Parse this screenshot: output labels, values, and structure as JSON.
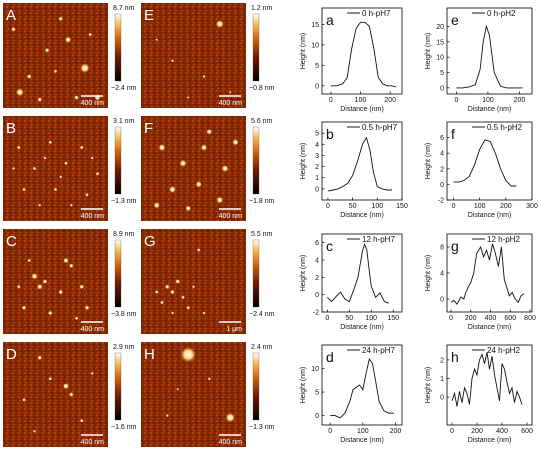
{
  "afm_images": [
    {
      "letter": "A",
      "scale": "400 nm",
      "cbar_max": "8.7 nm",
      "cbar_min": "−2.4 nm",
      "spots": [
        [
          0.78,
          0.62,
          3
        ],
        [
          0.16,
          0.85,
          2.5
        ],
        [
          0.62,
          0.35,
          2
        ],
        [
          0.42,
          0.45,
          1.5
        ],
        [
          0.25,
          0.7,
          1.5
        ],
        [
          0.55,
          0.15,
          1.5
        ],
        [
          0.9,
          0.9,
          2
        ],
        [
          0.1,
          0.25,
          1.5
        ],
        [
          0.7,
          0.9,
          1.5
        ],
        [
          0.35,
          0.92,
          1.5
        ],
        [
          0.5,
          0.65,
          1.2
        ],
        [
          0.83,
          0.3,
          1.2
        ]
      ]
    },
    {
      "letter": "E",
      "scale": "400 nm",
      "cbar_max": "1.2 nm",
      "cbar_min": "−0.8 nm",
      "spots": [
        [
          0.75,
          0.2,
          2.5
        ],
        [
          0.3,
          0.55,
          1
        ],
        [
          0.6,
          0.7,
          1
        ],
        [
          0.15,
          0.35,
          0.8
        ],
        [
          0.85,
          0.85,
          0.8
        ],
        [
          0.45,
          0.9,
          0.8
        ]
      ]
    },
    {
      "letter": "B",
      "scale": "400 nm",
      "cbar_max": "3.1 nm",
      "cbar_min": "−1.3 nm",
      "spots": [
        [
          0.15,
          0.3,
          1.2
        ],
        [
          0.3,
          0.5,
          1.2
        ],
        [
          0.45,
          0.25,
          1.2
        ],
        [
          0.6,
          0.45,
          1.2
        ],
        [
          0.75,
          0.3,
          1.2
        ],
        [
          0.9,
          0.55,
          1.2
        ],
        [
          0.2,
          0.7,
          1.2
        ],
        [
          0.5,
          0.7,
          1.2
        ],
        [
          0.8,
          0.75,
          1.2
        ],
        [
          0.35,
          0.85,
          1
        ],
        [
          0.65,
          0.85,
          1
        ],
        [
          0.1,
          0.5,
          1
        ],
        [
          0.55,
          0.58,
          1
        ],
        [
          0.4,
          0.4,
          1
        ],
        [
          0.85,
          0.4,
          1
        ]
      ]
    },
    {
      "letter": "F",
      "scale": "400 nm",
      "cbar_max": "5.6 nm",
      "cbar_min": "−1.8 nm",
      "spots": [
        [
          0.2,
          0.3,
          2.2
        ],
        [
          0.4,
          0.45,
          2.2
        ],
        [
          0.6,
          0.3,
          2
        ],
        [
          0.8,
          0.5,
          2.2
        ],
        [
          0.3,
          0.7,
          2.2
        ],
        [
          0.55,
          0.65,
          2
        ],
        [
          0.75,
          0.8,
          2.2
        ],
        [
          0.15,
          0.85,
          2
        ],
        [
          0.9,
          0.25,
          2
        ],
        [
          0.45,
          0.88,
          1.8
        ],
        [
          0.65,
          0.15,
          1.8
        ]
      ]
    },
    {
      "letter": "C",
      "scale": "400 nm",
      "cbar_max": "8.9 nm",
      "cbar_min": "−3.8 nm",
      "spots": [
        [
          0.3,
          0.45,
          2
        ],
        [
          0.35,
          0.55,
          1.8
        ],
        [
          0.4,
          0.5,
          1.5
        ],
        [
          0.6,
          0.3,
          1.8
        ],
        [
          0.65,
          0.35,
          1.5
        ],
        [
          0.55,
          0.6,
          1.5
        ],
        [
          0.2,
          0.75,
          1.5
        ],
        [
          0.75,
          0.55,
          1.5
        ],
        [
          0.8,
          0.75,
          1.5
        ],
        [
          0.45,
          0.8,
          1.5
        ],
        [
          0.25,
          0.3,
          1.2
        ],
        [
          0.15,
          0.55,
          1.2
        ],
        [
          0.7,
          0.85,
          1.2
        ]
      ]
    },
    {
      "letter": "G",
      "scale": "1 μm",
      "cbar_max": "5.5 nm",
      "cbar_min": "−2.4 nm",
      "spots": [
        [
          0.25,
          0.55,
          1.5
        ],
        [
          0.3,
          0.6,
          1.5
        ],
        [
          0.35,
          0.5,
          1.5
        ],
        [
          0.2,
          0.7,
          1.2
        ],
        [
          0.4,
          0.65,
          1.2
        ],
        [
          0.45,
          0.75,
          1.2
        ],
        [
          0.15,
          0.6,
          1.2
        ],
        [
          0.55,
          0.2,
          1.2
        ],
        [
          0.6,
          0.8,
          1
        ],
        [
          0.3,
          0.8,
          1
        ],
        [
          0.5,
          0.55,
          1
        ]
      ]
    },
    {
      "letter": "D",
      "scale": "400 nm",
      "cbar_max": "2.9 nm",
      "cbar_min": "−1.6 nm",
      "spots": [
        [
          0.35,
          0.15,
          1.5
        ],
        [
          0.6,
          0.42,
          2
        ],
        [
          0.65,
          0.5,
          1.5
        ],
        [
          0.2,
          0.55,
          1.2
        ],
        [
          0.75,
          0.75,
          1.2
        ],
        [
          0.45,
          0.35,
          1.2
        ],
        [
          0.85,
          0.3,
          1
        ],
        [
          0.3,
          0.85,
          1
        ]
      ]
    },
    {
      "letter": "H",
      "scale": "400 nm",
      "cbar_max": "2.4 nm",
      "cbar_min": "−1.3 nm",
      "spots": [
        [
          0.45,
          0.12,
          5
        ],
        [
          0.85,
          0.72,
          3
        ],
        [
          0.25,
          0.7,
          1
        ],
        [
          0.65,
          0.35,
          1
        ],
        [
          0.35,
          0.45,
          0.8
        ]
      ]
    }
  ],
  "chart_data": [
    {
      "type": "line",
      "panel": "a",
      "legend": "0 h-pH7",
      "xlabel": "Distance (nm)",
      "ylabel": "Height (nm)",
      "xlim": [
        -30,
        240
      ],
      "ylim": [
        -2,
        19
      ],
      "xticks": [
        0,
        100,
        200
      ],
      "yticks": [
        0,
        5,
        10,
        15
      ],
      "x": [
        0,
        20,
        40,
        55,
        70,
        85,
        100,
        115,
        130,
        145,
        160,
        175,
        190,
        205,
        220
      ],
      "y": [
        0,
        0,
        0.5,
        2,
        9,
        14,
        15.5,
        15.5,
        14.5,
        9,
        2,
        0.5,
        0,
        0,
        -0.3
      ]
    },
    {
      "type": "line",
      "panel": "e",
      "legend": "0 h-pH2",
      "xlabel": "Distance (nm)",
      "ylabel": "Height (nm)",
      "xlim": [
        -30,
        240
      ],
      "ylim": [
        -2,
        26
      ],
      "xticks": [
        0,
        100,
        200
      ],
      "yticks": [
        0,
        5,
        10,
        15,
        20
      ],
      "x": [
        0,
        20,
        40,
        60,
        75,
        85,
        95,
        105,
        120,
        140,
        160,
        180,
        200,
        210
      ],
      "y": [
        0,
        0,
        0.3,
        1,
        6,
        15,
        20,
        17,
        5,
        0.5,
        0,
        0,
        0,
        0
      ]
    },
    {
      "type": "line",
      "panel": "b",
      "legend": "0.5 h-pH7",
      "xlabel": "Distance (nm)",
      "ylabel": "Height (nm)",
      "xlim": [
        -12,
        150
      ],
      "ylim": [
        -1,
        6
      ],
      "xticks": [
        0,
        50,
        100,
        150
      ],
      "yticks": [
        0,
        1,
        2,
        3,
        4,
        5
      ],
      "x": [
        0,
        10,
        20,
        30,
        40,
        50,
        60,
        70,
        78,
        85,
        92,
        100,
        110,
        120,
        130
      ],
      "y": [
        -0.2,
        -0.1,
        0,
        0.2,
        0.5,
        1.2,
        2.5,
        4,
        4.6,
        3.5,
        1.5,
        0.2,
        0,
        -0.1,
        -0.1
      ]
    },
    {
      "type": "line",
      "panel": "f",
      "legend": "0.5 h-pH2",
      "xlabel": "Distance (nm)",
      "ylabel": "Height (nm)",
      "xlim": [
        -25,
        300
      ],
      "ylim": [
        -2,
        8
      ],
      "xticks": [
        0,
        100,
        200,
        300
      ],
      "yticks": [
        -2,
        0,
        2,
        4,
        6
      ],
      "x": [
        0,
        20,
        40,
        60,
        80,
        100,
        120,
        140,
        160,
        180,
        200,
        220,
        240
      ],
      "y": [
        0.3,
        0.3,
        0.5,
        1,
        2.5,
        4.5,
        5.7,
        5.5,
        4,
        2,
        0.5,
        -0.2,
        -0.2
      ]
    },
    {
      "type": "line",
      "panel": "c",
      "legend": "12 h-pH7",
      "xlabel": "Distance (nm)",
      "ylabel": "Height (nm)",
      "xlim": [
        -12,
        170
      ],
      "ylim": [
        -2,
        7
      ],
      "xticks": [
        0,
        50,
        100,
        150
      ],
      "yticks": [
        -2,
        0,
        2,
        4,
        6
      ],
      "x": [
        0,
        10,
        20,
        30,
        40,
        50,
        60,
        70,
        80,
        85,
        90,
        95,
        100,
        110,
        120,
        130,
        140
      ],
      "y": [
        -0.3,
        -0.8,
        -0.2,
        0.3,
        -0.5,
        -0.8,
        0.5,
        2,
        5,
        5.8,
        5.2,
        3,
        1,
        -0.3,
        0.2,
        -0.8,
        -1
      ]
    },
    {
      "type": "line",
      "panel": "g",
      "legend": "12 h-pH2",
      "xlabel": "Distance (nm)",
      "ylabel": "Height (nm)",
      "xlim": [
        -40,
        820
      ],
      "ylim": [
        -2,
        10
      ],
      "xticks": [
        0,
        200,
        400,
        600,
        800
      ],
      "yticks": [
        0,
        4,
        8
      ],
      "x": [
        0,
        30,
        60,
        100,
        130,
        150,
        180,
        200,
        230,
        260,
        300,
        330,
        360,
        390,
        420,
        450,
        480,
        510,
        540,
        560,
        590,
        620,
        650,
        680,
        710,
        740
      ],
      "y": [
        -0.5,
        -0.2,
        -0.8,
        0.3,
        0,
        1,
        2,
        2.5,
        4,
        7,
        8,
        6.5,
        7.5,
        6,
        8.5,
        7,
        5,
        8,
        3,
        2,
        0.5,
        1,
        0,
        -0.5,
        0.5,
        0.8
      ]
    },
    {
      "type": "line",
      "panel": "d",
      "legend": "24 h-pH7",
      "xlabel": "Distance (nm)",
      "ylabel": "Height (nm)",
      "xlim": [
        -25,
        220
      ],
      "ylim": [
        -2,
        15
      ],
      "xticks": [
        0,
        100,
        200
      ],
      "yticks": [
        0,
        5,
        10
      ],
      "x": [
        0,
        15,
        30,
        45,
        60,
        70,
        80,
        90,
        100,
        110,
        120,
        130,
        140,
        150,
        165,
        180,
        195
      ],
      "y": [
        0,
        0,
        -0.5,
        0.5,
        3,
        5.5,
        6,
        6.5,
        5.5,
        9,
        12,
        11,
        7,
        3,
        1,
        0.5,
        0.5
      ]
    },
    {
      "type": "line",
      "panel": "h",
      "legend": "24 h-pH2",
      "xlabel": "Distance (nm)",
      "ylabel": "Height (nm)",
      "xlim": [
        -40,
        640
      ],
      "ylim": [
        -1.5,
        2.8
      ],
      "xticks": [
        0,
        200,
        400,
        600
      ],
      "yticks": [
        0,
        1,
        2
      ],
      "x": [
        0,
        20,
        40,
        60,
        80,
        100,
        120,
        140,
        160,
        180,
        200,
        220,
        240,
        260,
        280,
        300,
        320,
        340,
        360,
        380,
        400,
        420,
        440,
        460,
        480,
        500,
        520,
        540,
        560
      ],
      "y": [
        -0.2,
        0.2,
        -0.5,
        0.3,
        -0.3,
        0.5,
        0.2,
        -0.4,
        1,
        1.5,
        1.2,
        2,
        2.3,
        1.8,
        2.4,
        1.5,
        2.2,
        1.2,
        0.5,
        -0.2,
        1.8,
        1.5,
        0.8,
        0.2,
        0.5,
        -0.3,
        0.3,
        0,
        -0.4
      ]
    }
  ]
}
